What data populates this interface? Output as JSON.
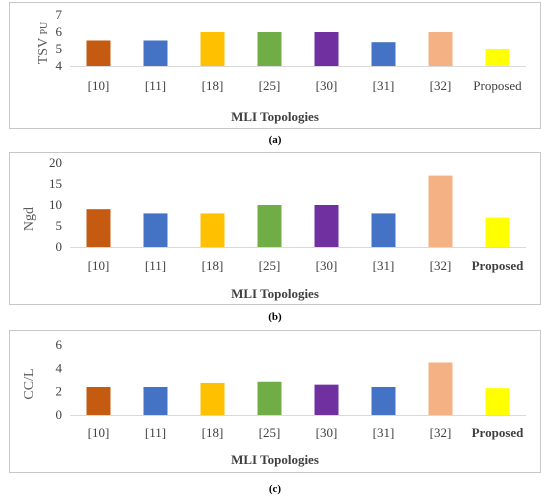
{
  "chart_data": [
    {
      "type": "bar",
      "categories": [
        "[10]",
        "[11]",
        "[18]",
        "[25]",
        "[30]",
        "[31]",
        "[32]",
        "Proposed"
      ],
      "values": [
        5.5,
        5.5,
        6.0,
        6.0,
        6.0,
        5.4,
        6.0,
        5.0
      ],
      "colors": [
        "#c55a11",
        "#4472c4",
        "#ffc000",
        "#70ad47",
        "#7030a0",
        "#4472c4",
        "#f4b183",
        "#ffff00"
      ],
      "ylabel": "TSV",
      "ylabel_sub": "PU",
      "xlabel": "MLI Topologies",
      "ylim": [
        4,
        7
      ],
      "yticks": [
        4,
        5,
        6,
        7
      ],
      "grid": false,
      "caption": "(a)"
    },
    {
      "type": "bar",
      "categories": [
        "[10]",
        "[11]",
        "[18]",
        "[25]",
        "[30]",
        "[31]",
        "[32]",
        "Proposed"
      ],
      "values": [
        9,
        8,
        8,
        10,
        10,
        8,
        17,
        7
      ],
      "colors": [
        "#c55a11",
        "#4472c4",
        "#ffc000",
        "#70ad47",
        "#7030a0",
        "#4472c4",
        "#f4b183",
        "#ffff00"
      ],
      "ylabel": "Ngd",
      "xlabel": "MLI Topologies",
      "ylim": [
        0,
        20
      ],
      "yticks": [
        0,
        5,
        10,
        15,
        20
      ],
      "grid": false,
      "caption": "(b)"
    },
    {
      "type": "bar",
      "categories": [
        "[10]",
        "[11]",
        "[18]",
        "[25]",
        "[30]",
        "[31]",
        "[32]",
        "Proposed"
      ],
      "values": [
        2.4,
        2.4,
        2.75,
        2.85,
        2.6,
        2.4,
        4.5,
        2.3
      ],
      "colors": [
        "#c55a11",
        "#4472c4",
        "#ffc000",
        "#70ad47",
        "#7030a0",
        "#4472c4",
        "#f4b183",
        "#ffff00"
      ],
      "ylabel": "CC/L",
      "xlabel": "MLI Topologies",
      "ylim": [
        0,
        6
      ],
      "yticks": [
        0,
        2,
        4,
        6
      ],
      "grid": false,
      "caption": "(c)"
    }
  ]
}
